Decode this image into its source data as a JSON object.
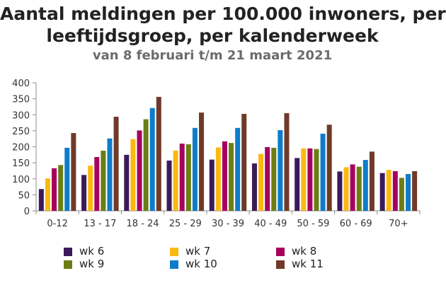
{
  "chart_data": {
    "type": "bar",
    "title_lines": [
      "Aantal meldingen per 100.000 inwoners, per",
      "leeftijdsgroep, per kalenderweek"
    ],
    "subtitle": "van 8 februari t/m 21 maart 2021",
    "xlabel": "",
    "ylabel": "",
    "ylim": [
      0,
      400
    ],
    "yticks": [
      0,
      50,
      100,
      150,
      200,
      250,
      300,
      350,
      400
    ],
    "grid": false,
    "legend_position": "bottom",
    "categories": [
      "0-12",
      "13 - 17",
      "18 - 24",
      "25 - 29",
      "30 - 39",
      "40 - 49",
      "50 - 59",
      "60 - 69",
      "70+"
    ],
    "series": [
      {
        "name": "wk 6",
        "color": "#3b1a5a",
        "values": [
          68,
          112,
          175,
          157,
          160,
          148,
          165,
          123,
          118
        ]
      },
      {
        "name": "wk 7",
        "color": "#fbb80f",
        "values": [
          101,
          141,
          224,
          188,
          198,
          178,
          195,
          136,
          128
        ]
      },
      {
        "name": "wk 8",
        "color": "#a6005f",
        "values": [
          133,
          168,
          251,
          210,
          217,
          199,
          195,
          145,
          124
        ]
      },
      {
        "name": "wk 9",
        "color": "#6b7e16",
        "values": [
          143,
          188,
          286,
          208,
          212,
          197,
          193,
          138,
          103
        ]
      },
      {
        "name": "wk 10",
        "color": "#0e7ccb",
        "values": [
          197,
          226,
          321,
          259,
          259,
          252,
          241,
          159,
          115
        ]
      },
      {
        "name": "wk 11",
        "color": "#6f3a2a",
        "values": [
          243,
          294,
          356,
          307,
          303,
          305,
          269,
          185,
          124
        ]
      }
    ]
  }
}
